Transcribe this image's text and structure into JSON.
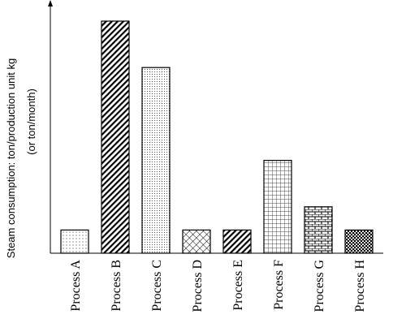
{
  "chart_data": {
    "type": "bar",
    "title": "",
    "xlabel": "",
    "ylabel": "Steam consumption: ton/production unit kg",
    "ylabel_line2": "(or ton/month)",
    "categories": [
      "Process A",
      "Process B",
      "Process C",
      "Process D",
      "Process E",
      "Process F",
      "Process G",
      "Process H"
    ],
    "values": [
      10,
      100,
      80,
      10,
      10,
      40,
      20,
      10
    ],
    "ylim": [
      0,
      100
    ],
    "y_ticks_shown": false,
    "grid": false,
    "legend": "none",
    "bar_patterns": [
      "dots-sparse",
      "diagonal-dense",
      "dots-fine",
      "crosshatch-diamond",
      "diagonal-dense",
      "grid-squares",
      "brick",
      "checker-dense"
    ]
  }
}
